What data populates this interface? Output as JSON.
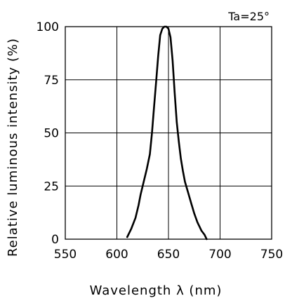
{
  "chart_data": {
    "type": "line",
    "xlabel": "Wavelength λ (nm)",
    "ylabel": "Relative luminous intensity (%)",
    "annotation": "Ta=25°",
    "xlim": [
      550,
      750
    ],
    "ylim": [
      0,
      100
    ],
    "x_ticks": [
      "550",
      "600",
      "650",
      "700",
      "750"
    ],
    "y_ticks": [
      "0",
      "25",
      "50",
      "75",
      "100"
    ],
    "grid": true,
    "line_color": "#000000",
    "series": [
      {
        "x": [
          610,
          614,
          618,
          621,
          623,
          626,
          629,
          632,
          634,
          636,
          638,
          640,
          642,
          644,
          646,
          648,
          650,
          652,
          654,
          656,
          658,
          660,
          662,
          664,
          666,
          669,
          672,
          675,
          678,
          682,
          685,
          687
        ],
        "y": [
          1,
          5,
          10,
          16,
          21,
          27,
          33,
          40,
          50,
          62,
          74,
          86,
          96,
          99,
          100,
          100,
          99,
          95,
          84,
          69,
          55,
          46,
          38,
          32,
          27,
          22,
          17,
          12,
          8,
          4,
          2,
          0
        ]
      }
    ]
  }
}
